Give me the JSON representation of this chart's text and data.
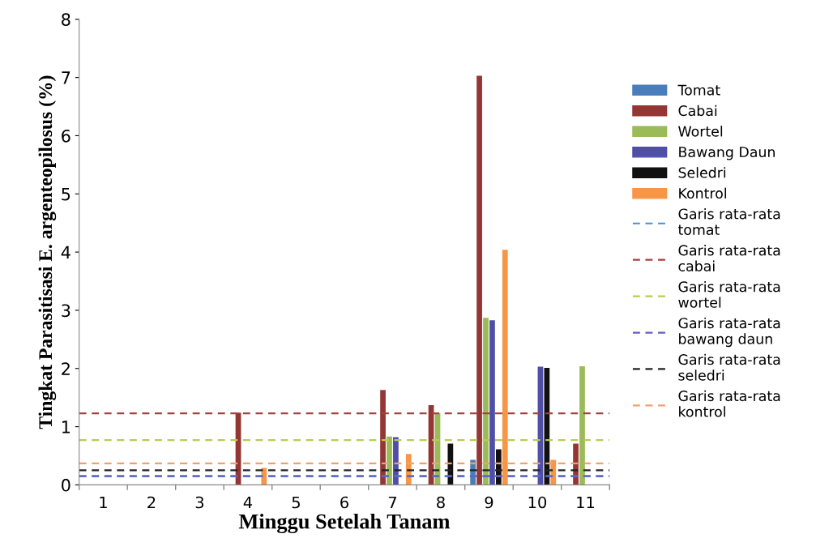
{
  "chart_data": {
    "type": "bar",
    "xlabel": "Minggu Setelah Tanam",
    "ylabel": "Tingkat Parasitisasi E. argenteopilosus (%)",
    "categories": [
      "1",
      "2",
      "3",
      "4",
      "5",
      "6",
      "7",
      "8",
      "9",
      "10",
      "11"
    ],
    "series": [
      {
        "name": "Tomat",
        "color": "#4a7ebb",
        "values": [
          0,
          0,
          0,
          0,
          0,
          0,
          0,
          0,
          0.43,
          0,
          0
        ]
      },
      {
        "name": "Cabai",
        "color": "#943634",
        "values": [
          0,
          0,
          0,
          1.24,
          0,
          0,
          1.63,
          1.37,
          7.03,
          0,
          0.71
        ]
      },
      {
        "name": "Wortel",
        "color": "#9bbb59",
        "values": [
          0,
          0,
          0,
          0,
          0,
          0,
          0.83,
          1.23,
          2.87,
          0,
          2.04
        ]
      },
      {
        "name": "Bawang Daun",
        "color": "#4f4fa8",
        "values": [
          0,
          0,
          0,
          0,
          0,
          0,
          0.82,
          0,
          2.83,
          2.03,
          0
        ]
      },
      {
        "name": "Seledri",
        "color": "#111111",
        "values": [
          0,
          0,
          0,
          0,
          0,
          0,
          0,
          0.71,
          0.61,
          2.01,
          0
        ]
      },
      {
        "name": "Kontrol",
        "color": "#f79646",
        "values": [
          0,
          0,
          0,
          0.29,
          0,
          0,
          0.53,
          0,
          4.04,
          0.43,
          0
        ]
      }
    ],
    "ref_lines": [
      {
        "axis": "y",
        "value": 0.15,
        "label": "Garis rata-rata\ntomat",
        "color": "#4a8fd4",
        "line_style": "dashed"
      },
      {
        "axis": "y",
        "value": 1.23,
        "label": "Garis rata-rata\ncabai",
        "color": "#a84040",
        "line_style": "dashed"
      },
      {
        "axis": "y",
        "value": 0.77,
        "label": "Garis rata-rata\nwortel",
        "color": "#b8cc50",
        "line_style": "dashed"
      },
      {
        "axis": "y",
        "value": 0.15,
        "label": "Garis rata-rata\nbawang daun",
        "color": "#6060c0",
        "line_style": "dashed"
      },
      {
        "axis": "y",
        "value": 0.25,
        "label": "Garis rata-rata\nseledri",
        "color": "#222222",
        "line_style": "dashed"
      },
      {
        "axis": "y",
        "value": 0.37,
        "label": "Garis rata-rata\nkontrol",
        "color": "#f0a070",
        "line_style": "dashed"
      }
    ],
    "ylim": [
      0,
      8
    ],
    "yticks": [
      0,
      1,
      2,
      3,
      4,
      5,
      6,
      7,
      8
    ],
    "grid": false,
    "legend": "right"
  }
}
